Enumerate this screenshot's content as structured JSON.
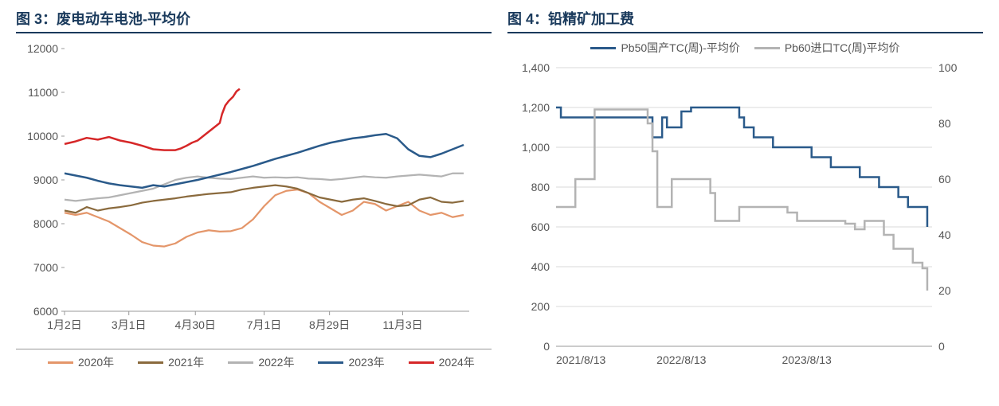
{
  "chart3": {
    "title": "图 3：废电动车电池-平均价",
    "type": "line",
    "ylim": [
      6000,
      12000
    ],
    "ytick_step": 1000,
    "yticks": [
      6000,
      7000,
      8000,
      9000,
      10000,
      11000,
      12000
    ],
    "xlabels": [
      "1月2日",
      "3月1日",
      "4月30日",
      "7月1日",
      "8月29日",
      "11月3日"
    ],
    "xrange": [
      0,
      365
    ],
    "xtick_positions": [
      0,
      58,
      118,
      180,
      239,
      305
    ],
    "background_color": "#ffffff",
    "axis_color": "#999999",
    "tick_fontsize": 14,
    "series": [
      {
        "name": "2020年",
        "color": "#e4966a",
        "width": 2.2,
        "points": [
          [
            0,
            8250
          ],
          [
            10,
            8200
          ],
          [
            20,
            8250
          ],
          [
            30,
            8150
          ],
          [
            40,
            8050
          ],
          [
            50,
            7900
          ],
          [
            60,
            7750
          ],
          [
            70,
            7580
          ],
          [
            80,
            7500
          ],
          [
            90,
            7480
          ],
          [
            100,
            7550
          ],
          [
            110,
            7700
          ],
          [
            120,
            7800
          ],
          [
            130,
            7850
          ],
          [
            140,
            7820
          ],
          [
            150,
            7830
          ],
          [
            160,
            7900
          ],
          [
            170,
            8100
          ],
          [
            180,
            8400
          ],
          [
            190,
            8650
          ],
          [
            200,
            8750
          ],
          [
            210,
            8780
          ],
          [
            220,
            8700
          ],
          [
            230,
            8500
          ],
          [
            240,
            8350
          ],
          [
            250,
            8200
          ],
          [
            260,
            8300
          ],
          [
            270,
            8500
          ],
          [
            280,
            8450
          ],
          [
            290,
            8300
          ],
          [
            300,
            8400
          ],
          [
            310,
            8500
          ],
          [
            320,
            8300
          ],
          [
            330,
            8200
          ],
          [
            340,
            8250
          ],
          [
            350,
            8150
          ],
          [
            360,
            8200
          ]
        ]
      },
      {
        "name": "2021年",
        "color": "#8a6a3d",
        "width": 2.2,
        "points": [
          [
            0,
            8300
          ],
          [
            10,
            8250
          ],
          [
            20,
            8380
          ],
          [
            30,
            8300
          ],
          [
            40,
            8350
          ],
          [
            50,
            8380
          ],
          [
            60,
            8420
          ],
          [
            70,
            8480
          ],
          [
            80,
            8520
          ],
          [
            90,
            8550
          ],
          [
            100,
            8580
          ],
          [
            110,
            8620
          ],
          [
            120,
            8650
          ],
          [
            130,
            8680
          ],
          [
            140,
            8700
          ],
          [
            150,
            8720
          ],
          [
            160,
            8780
          ],
          [
            170,
            8820
          ],
          [
            180,
            8850
          ],
          [
            190,
            8880
          ],
          [
            200,
            8850
          ],
          [
            210,
            8800
          ],
          [
            220,
            8700
          ],
          [
            230,
            8600
          ],
          [
            240,
            8550
          ],
          [
            250,
            8500
          ],
          [
            260,
            8550
          ],
          [
            270,
            8580
          ],
          [
            280,
            8520
          ],
          [
            290,
            8450
          ],
          [
            300,
            8400
          ],
          [
            310,
            8420
          ],
          [
            320,
            8550
          ],
          [
            330,
            8600
          ],
          [
            340,
            8500
          ],
          [
            350,
            8480
          ],
          [
            360,
            8520
          ]
        ]
      },
      {
        "name": "2022年",
        "color": "#b3b3b3",
        "width": 2.2,
        "points": [
          [
            0,
            8550
          ],
          [
            10,
            8520
          ],
          [
            20,
            8550
          ],
          [
            30,
            8580
          ],
          [
            40,
            8600
          ],
          [
            50,
            8650
          ],
          [
            60,
            8700
          ],
          [
            70,
            8750
          ],
          [
            80,
            8800
          ],
          [
            90,
            8900
          ],
          [
            100,
            9000
          ],
          [
            110,
            9050
          ],
          [
            120,
            9080
          ],
          [
            130,
            9050
          ],
          [
            140,
            9030
          ],
          [
            150,
            9020
          ],
          [
            160,
            9050
          ],
          [
            170,
            9080
          ],
          [
            180,
            9050
          ],
          [
            190,
            9060
          ],
          [
            200,
            9050
          ],
          [
            210,
            9060
          ],
          [
            220,
            9030
          ],
          [
            230,
            9020
          ],
          [
            240,
            9000
          ],
          [
            250,
            9020
          ],
          [
            260,
            9050
          ],
          [
            270,
            9080
          ],
          [
            280,
            9060
          ],
          [
            290,
            9050
          ],
          [
            300,
            9080
          ],
          [
            310,
            9100
          ],
          [
            320,
            9120
          ],
          [
            330,
            9100
          ],
          [
            340,
            9080
          ],
          [
            350,
            9150
          ],
          [
            360,
            9150
          ]
        ]
      },
      {
        "name": "2023年",
        "color": "#2a5a8a",
        "width": 2.5,
        "points": [
          [
            0,
            9150
          ],
          [
            10,
            9100
          ],
          [
            20,
            9050
          ],
          [
            30,
            8980
          ],
          [
            40,
            8920
          ],
          [
            50,
            8880
          ],
          [
            60,
            8850
          ],
          [
            70,
            8820
          ],
          [
            80,
            8880
          ],
          [
            90,
            8850
          ],
          [
            100,
            8900
          ],
          [
            110,
            8950
          ],
          [
            120,
            9000
          ],
          [
            130,
            9060
          ],
          [
            140,
            9120
          ],
          [
            150,
            9180
          ],
          [
            160,
            9250
          ],
          [
            170,
            9320
          ],
          [
            180,
            9400
          ],
          [
            190,
            9480
          ],
          [
            200,
            9550
          ],
          [
            210,
            9620
          ],
          [
            220,
            9700
          ],
          [
            230,
            9780
          ],
          [
            240,
            9850
          ],
          [
            250,
            9900
          ],
          [
            260,
            9950
          ],
          [
            270,
            9980
          ],
          [
            280,
            10020
          ],
          [
            290,
            10050
          ],
          [
            300,
            9950
          ],
          [
            310,
            9700
          ],
          [
            320,
            9550
          ],
          [
            330,
            9520
          ],
          [
            340,
            9600
          ],
          [
            350,
            9700
          ],
          [
            360,
            9800
          ]
        ]
      },
      {
        "name": "2024年",
        "color": "#d62728",
        "width": 2.5,
        "points": [
          [
            0,
            9820
          ],
          [
            10,
            9880
          ],
          [
            20,
            9960
          ],
          [
            30,
            9920
          ],
          [
            40,
            9980
          ],
          [
            50,
            9900
          ],
          [
            60,
            9850
          ],
          [
            70,
            9780
          ],
          [
            80,
            9700
          ],
          [
            90,
            9680
          ],
          [
            100,
            9680
          ],
          [
            105,
            9720
          ],
          [
            110,
            9780
          ],
          [
            115,
            9850
          ],
          [
            120,
            9900
          ],
          [
            125,
            10000
          ],
          [
            130,
            10100
          ],
          [
            135,
            10200
          ],
          [
            140,
            10300
          ],
          [
            142,
            10500
          ],
          [
            145,
            10700
          ],
          [
            148,
            10800
          ],
          [
            152,
            10900
          ],
          [
            155,
            11020
          ],
          [
            158,
            11080
          ]
        ]
      }
    ]
  },
  "chart4": {
    "title": "图 4：铅精矿加工费",
    "type": "line-dual-axis",
    "yleft": {
      "lim": [
        0,
        1400
      ],
      "tick_step": 200,
      "ticks": [
        0,
        200,
        400,
        600,
        800,
        1000,
        1200,
        1400
      ]
    },
    "yright": {
      "lim": [
        0,
        100
      ],
      "tick_step": 20,
      "ticks": [
        0,
        20,
        40,
        60,
        80,
        100
      ]
    },
    "xlabels": [
      "2021/8/13",
      "2022/8/13",
      "2023/8/13"
    ],
    "xrange": [
      0,
      156
    ],
    "xtick_positions": [
      0,
      52,
      104
    ],
    "background_color": "#ffffff",
    "axis_color": "#999999",
    "grid_color": "#d9d9d9",
    "tick_fontsize": 14,
    "series": [
      {
        "name": "Pb50国产TC(周)-平均价",
        "axis": "left",
        "color": "#2a5a8a",
        "width": 2.5,
        "points": [
          [
            0,
            1200
          ],
          [
            2,
            1150
          ],
          [
            4,
            1150
          ],
          [
            8,
            1150
          ],
          [
            12,
            1150
          ],
          [
            16,
            1150
          ],
          [
            22,
            1150
          ],
          [
            26,
            1150
          ],
          [
            30,
            1150
          ],
          [
            34,
            1150
          ],
          [
            38,
            1150
          ],
          [
            40,
            1050
          ],
          [
            42,
            1050
          ],
          [
            44,
            1150
          ],
          [
            46,
            1100
          ],
          [
            48,
            1100
          ],
          [
            52,
            1180
          ],
          [
            56,
            1200
          ],
          [
            60,
            1200
          ],
          [
            64,
            1200
          ],
          [
            68,
            1200
          ],
          [
            72,
            1200
          ],
          [
            76,
            1150
          ],
          [
            78,
            1100
          ],
          [
            82,
            1050
          ],
          [
            86,
            1050
          ],
          [
            90,
            1000
          ],
          [
            94,
            1000
          ],
          [
            98,
            1000
          ],
          [
            102,
            1000
          ],
          [
            106,
            950
          ],
          [
            110,
            950
          ],
          [
            114,
            900
          ],
          [
            118,
            900
          ],
          [
            122,
            900
          ],
          [
            126,
            850
          ],
          [
            130,
            850
          ],
          [
            134,
            800
          ],
          [
            138,
            800
          ],
          [
            142,
            750
          ],
          [
            146,
            700
          ],
          [
            150,
            700
          ],
          [
            152,
            700
          ],
          [
            154,
            600
          ]
        ]
      },
      {
        "name": "Pb60进口TC(周)平均价",
        "axis": "right",
        "color": "#b3b3b3",
        "width": 2.5,
        "points": [
          [
            0,
            50
          ],
          [
            2,
            50
          ],
          [
            4,
            50
          ],
          [
            6,
            50
          ],
          [
            8,
            60
          ],
          [
            10,
            60
          ],
          [
            12,
            60
          ],
          [
            14,
            60
          ],
          [
            16,
            85
          ],
          [
            18,
            85
          ],
          [
            22,
            85
          ],
          [
            26,
            85
          ],
          [
            30,
            85
          ],
          [
            34,
            85
          ],
          [
            38,
            80
          ],
          [
            40,
            70
          ],
          [
            42,
            50
          ],
          [
            44,
            50
          ],
          [
            46,
            50
          ],
          [
            48,
            60
          ],
          [
            52,
            60
          ],
          [
            56,
            60
          ],
          [
            60,
            60
          ],
          [
            64,
            55
          ],
          [
            66,
            45
          ],
          [
            70,
            45
          ],
          [
            74,
            45
          ],
          [
            76,
            50
          ],
          [
            80,
            50
          ],
          [
            84,
            50
          ],
          [
            88,
            50
          ],
          [
            92,
            50
          ],
          [
            96,
            48
          ],
          [
            100,
            45
          ],
          [
            104,
            45
          ],
          [
            108,
            45
          ],
          [
            112,
            45
          ],
          [
            116,
            45
          ],
          [
            120,
            44
          ],
          [
            124,
            42
          ],
          [
            128,
            45
          ],
          [
            132,
            45
          ],
          [
            136,
            40
          ],
          [
            140,
            35
          ],
          [
            144,
            35
          ],
          [
            148,
            30
          ],
          [
            152,
            28
          ],
          [
            154,
            20
          ]
        ]
      }
    ]
  }
}
